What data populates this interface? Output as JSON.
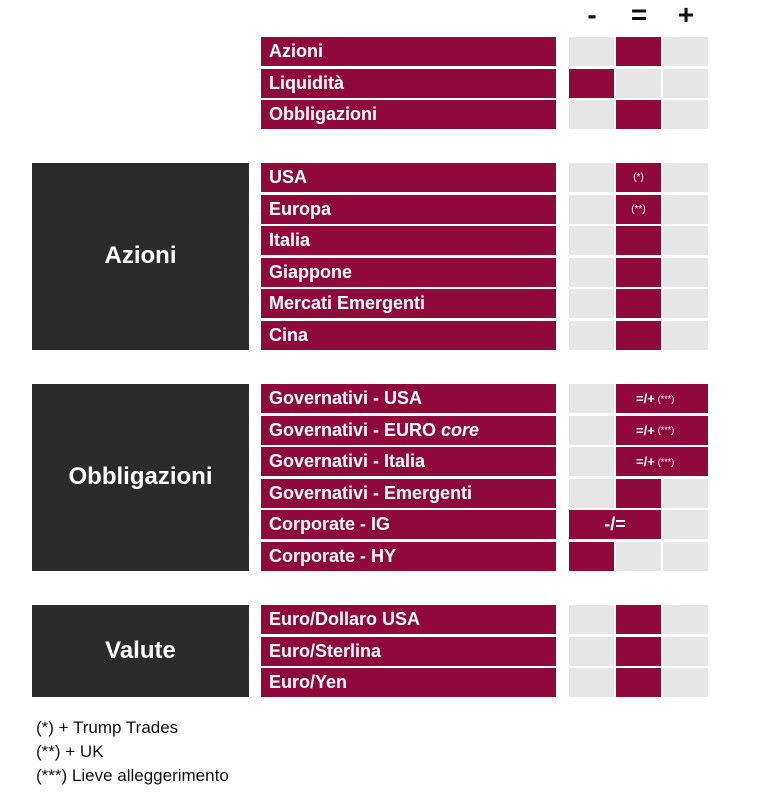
{
  "header": {
    "minus": "-",
    "equal": "=",
    "plus": "+"
  },
  "summary": [
    {
      "label": "Azioni",
      "col": "equal"
    },
    {
      "label": "Liquidità",
      "col": "minus"
    },
    {
      "label": "Obbligazioni",
      "col": "equal"
    }
  ],
  "sections": [
    {
      "title": "Azioni",
      "rows": [
        {
          "label": "USA",
          "col": "equal",
          "mark": "(*)"
        },
        {
          "label": "Europa",
          "col": "equal",
          "mark": "(**)"
        },
        {
          "label": "Italia",
          "col": "equal"
        },
        {
          "label": "Giappone",
          "col": "equal"
        },
        {
          "label": "Mercati Emergenti",
          "col": "equal"
        },
        {
          "label": "Cina",
          "col": "equal"
        }
      ]
    },
    {
      "title": "Obbligazioni",
      "rows": [
        {
          "label": "Governativi - USA",
          "col": "equal-plus",
          "span_text": "=/+",
          "span_note": "(***)"
        },
        {
          "label": "Governativi - EURO ",
          "label_italic": "core",
          "col": "equal-plus",
          "span_text": "=/+",
          "span_note": "(***)"
        },
        {
          "label": "Governativi - Italia",
          "col": "equal-plus",
          "span_text": "=/+",
          "span_note": "(***)"
        },
        {
          "label": "Governativi - Emergenti",
          "col": "equal"
        },
        {
          "label": "Corporate - IG",
          "col": "minus-equal",
          "span_text": "-/="
        },
        {
          "label": "Corporate - HY",
          "col": "minus"
        }
      ]
    },
    {
      "title": "Valute",
      "rows": [
        {
          "label": "Euro/Dollaro USA",
          "col": "equal"
        },
        {
          "label": "Euro/Sterlina",
          "col": "equal"
        },
        {
          "label": "Euro/Yen",
          "col": "equal"
        }
      ]
    }
  ],
  "footnotes": [
    "(*) + Trump Trades",
    "(**) + UK",
    "(***) Lieve alleggerimento"
  ],
  "colors": {
    "accent": "#8f0a3a",
    "block": "#2b2b2b",
    "cell": "#e6e6e6"
  }
}
